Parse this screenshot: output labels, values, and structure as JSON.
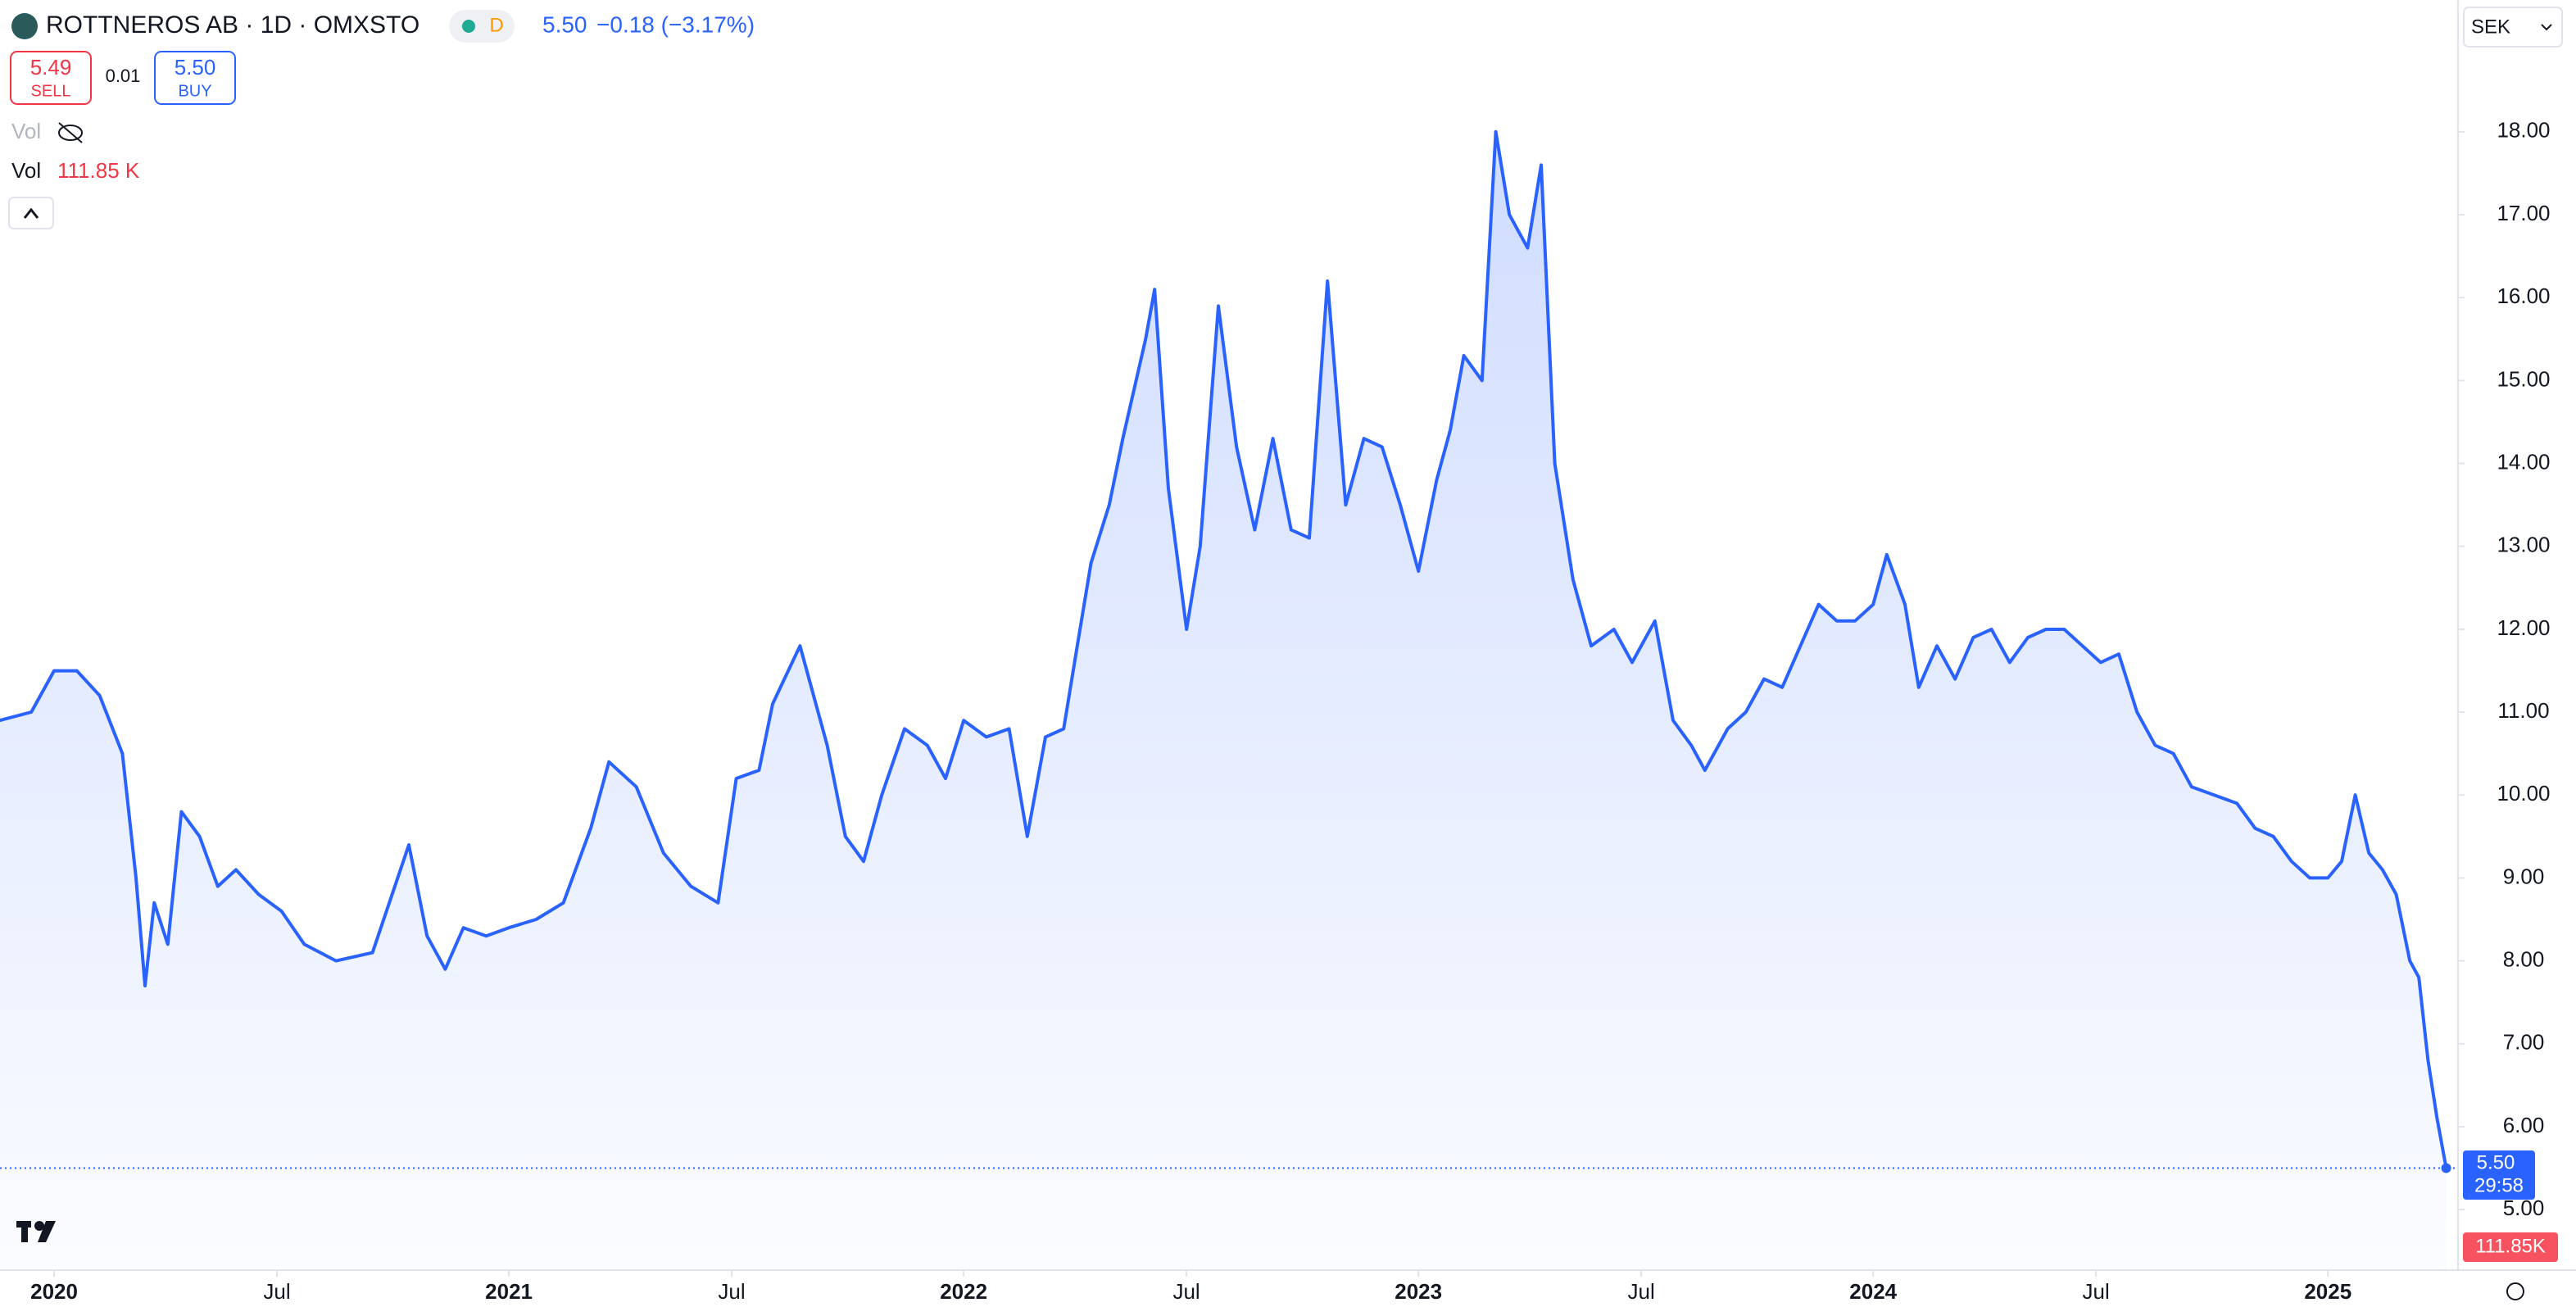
{
  "header": {
    "symbol": "ROTTNEROS AB · 1D · OMXSTO",
    "interval_badge": "D",
    "price": "5.50",
    "change": "−0.18 (−3.17%)",
    "sell_price": "5.49",
    "sell_label": "SELL",
    "spread": "0.01",
    "buy_price": "5.50",
    "buy_label": "BUY",
    "vol_hidden": "Vol",
    "vol_label": "Vol",
    "vol_value": "111.85 K",
    "currency": "SEK",
    "last_price_label": "5.50",
    "countdown": "29:58",
    "last_volume_label": "111.85K"
  },
  "chart_data": {
    "type": "line",
    "color": "#2962ff",
    "x": [
      2019.88,
      2019.95,
      2020.0,
      2020.05,
      2020.1,
      2020.15,
      2020.18,
      2020.2,
      2020.22,
      2020.25,
      2020.28,
      2020.32,
      2020.36,
      2020.4,
      2020.45,
      2020.5,
      2020.55,
      2020.62,
      2020.7,
      2020.78,
      2020.82,
      2020.86,
      2020.9,
      2020.95,
      2021.0,
      2021.06,
      2021.12,
      2021.18,
      2021.22,
      2021.28,
      2021.34,
      2021.4,
      2021.46,
      2021.5,
      2021.55,
      2021.58,
      2021.64,
      2021.7,
      2021.74,
      2021.78,
      2021.82,
      2021.87,
      2021.92,
      2021.96,
      2022.0,
      2022.05,
      2022.1,
      2022.14,
      2022.18,
      2022.22,
      2022.25,
      2022.28,
      2022.32,
      2022.35,
      2022.4,
      2022.42,
      2022.45,
      2022.49,
      2022.52,
      2022.56,
      2022.6,
      2022.64,
      2022.68,
      2022.72,
      2022.76,
      2022.8,
      2022.84,
      2022.88,
      2022.92,
      2022.96,
      2023.0,
      2023.04,
      2023.07,
      2023.1,
      2023.14,
      2023.17,
      2023.2,
      2023.24,
      2023.27,
      2023.3,
      2023.34,
      2023.38,
      2023.43,
      2023.47,
      2023.52,
      2023.56,
      2023.6,
      2023.63,
      2023.68,
      2023.72,
      2023.76,
      2023.8,
      2023.84,
      2023.88,
      2023.92,
      2023.96,
      2024.0,
      2024.03,
      2024.07,
      2024.1,
      2024.14,
      2024.18,
      2024.22,
      2024.26,
      2024.3,
      2024.34,
      2024.38,
      2024.42,
      2024.46,
      2024.5,
      2024.54,
      2024.58,
      2024.62,
      2024.66,
      2024.7,
      2024.75,
      2024.8,
      2024.84,
      2024.88,
      2024.92,
      2024.96,
      2025.0,
      2025.03,
      2025.06,
      2025.09,
      2025.12,
      2025.15,
      2025.18,
      2025.2,
      2025.22,
      2025.24,
      2025.25,
      2025.26
    ],
    "values": [
      10.9,
      11.0,
      11.5,
      11.5,
      11.2,
      10.5,
      9.0,
      7.7,
      8.7,
      8.2,
      9.8,
      9.5,
      8.9,
      9.1,
      8.8,
      8.6,
      8.2,
      8.0,
      8.1,
      9.4,
      8.3,
      7.9,
      8.4,
      8.3,
      8.4,
      8.5,
      8.7,
      9.6,
      10.4,
      10.1,
      9.3,
      8.9,
      8.7,
      10.2,
      10.3,
      11.1,
      11.8,
      10.6,
      9.5,
      9.2,
      10.0,
      10.8,
      10.6,
      10.2,
      10.9,
      10.7,
      10.8,
      9.5,
      10.7,
      10.8,
      11.8,
      12.8,
      13.5,
      14.3,
      15.5,
      16.1,
      13.7,
      12.0,
      13.0,
      15.9,
      14.2,
      13.2,
      14.3,
      13.2,
      13.1,
      16.2,
      13.5,
      14.3,
      14.2,
      13.5,
      12.7,
      13.8,
      14.4,
      15.3,
      15.0,
      18.0,
      17.0,
      16.6,
      17.6,
      14.0,
      12.6,
      11.8,
      12.0,
      11.6,
      12.1,
      10.9,
      10.6,
      10.3,
      10.8,
      11.0,
      11.4,
      11.3,
      11.8,
      12.3,
      12.1,
      12.1,
      12.3,
      12.9,
      12.3,
      11.3,
      11.8,
      11.4,
      11.9,
      12.0,
      11.6,
      11.9,
      12.0,
      12.0,
      11.8,
      11.6,
      11.7,
      11.0,
      10.6,
      10.5,
      10.1,
      10.0,
      9.9,
      9.6,
      9.5,
      9.2,
      9.0,
      9.0,
      9.2,
      10.0,
      9.3,
      9.1,
      8.8,
      8.0,
      7.8,
      6.8,
      6.1,
      5.8,
      5.5
    ],
    "xlim": [
      2019.881,
      2025.286
    ],
    "xticks": [
      {
        "value": 2020,
        "label": "2020"
      },
      {
        "value": 2020.49,
        "label": "Jul"
      },
      {
        "value": 2021,
        "label": "2021"
      },
      {
        "value": 2021.49,
        "label": "Jul"
      },
      {
        "value": 2022,
        "label": "2022"
      },
      {
        "value": 2022.49,
        "label": "Jul"
      },
      {
        "value": 2023,
        "label": "2023"
      },
      {
        "value": 2023.49,
        "label": "Jul"
      },
      {
        "value": 2024,
        "label": "2024"
      },
      {
        "value": 2024.49,
        "label": "Jul"
      },
      {
        "value": 2025,
        "label": "2025"
      }
    ],
    "ylim": [
      4.27,
      19.59
    ],
    "yticks": [
      {
        "value": 5,
        "label": "5.00"
      },
      {
        "value": 6,
        "label": "6.00"
      },
      {
        "value": 7,
        "label": "7.00"
      },
      {
        "value": 8,
        "label": "8.00"
      },
      {
        "value": 9,
        "label": "9.00"
      },
      {
        "value": 10,
        "label": "10.00"
      },
      {
        "value": 11,
        "label": "11.00"
      },
      {
        "value": 12,
        "label": "12.00"
      },
      {
        "value": 13,
        "label": "13.00"
      },
      {
        "value": 14,
        "label": "14.00"
      },
      {
        "value": 15,
        "label": "15.00"
      },
      {
        "value": 16,
        "label": "16.00"
      },
      {
        "value": 17,
        "label": "17.00"
      },
      {
        "value": 18,
        "label": "18.00"
      }
    ]
  }
}
